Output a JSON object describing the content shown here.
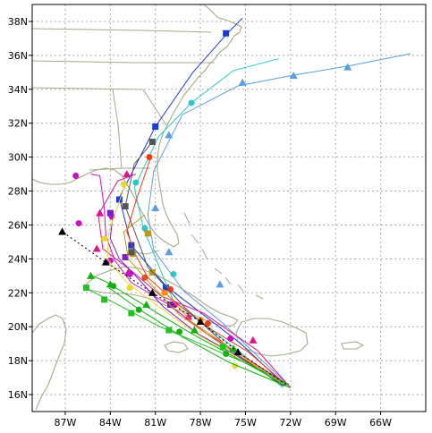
{
  "map": {
    "lat_labels": [
      "16N",
      "18N",
      "20N",
      "22N",
      "24N",
      "26N",
      "28N",
      "30N",
      "32N",
      "34N",
      "36N",
      "38N"
    ],
    "lon_labels": [
      "87W",
      "84W",
      "81W",
      "78W",
      "75W",
      "72W",
      "69W",
      "66W"
    ],
    "lon_range": [
      -89.2,
      -63.0
    ],
    "lat_range": [
      15.0,
      39.0
    ],
    "colors": {
      "coast": "#a8a888",
      "grid": "#a8a8a8",
      "frame": "#000000"
    }
  },
  "tracks": [
    {
      "color": "#1a3bd6",
      "marker": "square",
      "points": [
        [
          -72.3,
          16.5
        ],
        [
          -75.3,
          19.0
        ],
        [
          -80.3,
          22.4
        ],
        [
          -82.6,
          24.8
        ],
        [
          -83.4,
          27.6
        ],
        [
          -81.0,
          31.8
        ],
        [
          -78.5,
          35.0
        ],
        [
          -76.2,
          37.3
        ],
        [
          -75.2,
          38.2
        ]
      ],
      "markers": [
        [
          -82.6,
          24.8
        ],
        [
          -83.4,
          27.5
        ],
        [
          -81.0,
          31.8
        ],
        [
          -76.3,
          37.3
        ],
        [
          -80.3,
          22.3
        ]
      ]
    },
    {
      "color": "#27c9c4",
      "marker": "circle",
      "points": [
        [
          -72.5,
          16.4
        ],
        [
          -75.5,
          18.6
        ],
        [
          -79.8,
          21.5
        ],
        [
          -81.8,
          25.8
        ],
        [
          -82.4,
          28.2
        ],
        [
          -80.8,
          31.2
        ],
        [
          -78.6,
          33.2
        ],
        [
          -75.8,
          35.1
        ],
        [
          -72.8,
          35.8
        ]
      ],
      "markers": [
        [
          -79.8,
          23.1
        ],
        [
          -81.7,
          25.8
        ],
        [
          -82.3,
          28.5
        ],
        [
          -78.6,
          33.2
        ]
      ]
    },
    {
      "color": "#5a9ee0",
      "marker": "triangle",
      "points": [
        [
          -72.2,
          16.6
        ],
        [
          -76.5,
          20.2
        ],
        [
          -79.1,
          22.1
        ],
        [
          -81.1,
          24.5
        ],
        [
          -81.5,
          26.6
        ],
        [
          -81.1,
          29.2
        ],
        [
          -79.2,
          32.5
        ],
        [
          -75.5,
          34.2
        ],
        [
          -72.0,
          34.8
        ],
        [
          -68.0,
          35.4
        ],
        [
          -64.0,
          36.1
        ]
      ],
      "markers": [
        [
          -76.7,
          22.5
        ],
        [
          -80.1,
          24.4
        ],
        [
          -81.0,
          27.0
        ],
        [
          -80.1,
          31.3
        ],
        [
          -75.2,
          34.4
        ],
        [
          -71.8,
          34.8
        ],
        [
          -68.2,
          35.3
        ]
      ]
    },
    {
      "color": "#f33a10",
      "marker": "circle",
      "points": [
        [
          -72.3,
          16.6
        ],
        [
          -74.8,
          18.5
        ],
        [
          -77.2,
          19.8
        ],
        [
          -79.6,
          21.4
        ],
        [
          -81.5,
          22.9
        ],
        [
          -82.3,
          24.2
        ],
        [
          -82.9,
          25.6
        ],
        [
          -82.3,
          27.4
        ],
        [
          -81.3,
          30.0
        ]
      ],
      "markers": [
        [
          -77.5,
          20.2
        ],
        [
          -80.0,
          22.2
        ],
        [
          -81.7,
          22.9
        ],
        [
          -82.5,
          24.3
        ],
        [
          -81.4,
          30.0
        ]
      ]
    },
    {
      "color": "#e0148a",
      "marker": "triangle",
      "points": [
        [
          -72.0,
          16.4
        ],
        [
          -74.2,
          18.6
        ],
        [
          -77.8,
          20.8
        ],
        [
          -80.6,
          21.8
        ],
        [
          -82.6,
          23.3
        ],
        [
          -84.5,
          24.6
        ],
        [
          -84.8,
          26.6
        ],
        [
          -83.5,
          28.6
        ],
        [
          -82.3,
          29.0
        ]
      ],
      "markers": [
        [
          -74.5,
          19.2
        ],
        [
          -78.8,
          20.6
        ],
        [
          -82.8,
          23.2
        ],
        [
          -84.9,
          24.6
        ],
        [
          -84.7,
          26.7
        ],
        [
          -82.9,
          29.0
        ]
      ]
    },
    {
      "color": "#c811c0",
      "marker": "circle",
      "points": [
        [
          -72.2,
          16.6
        ],
        [
          -75.4,
          18.4
        ],
        [
          -77.6,
          19.6
        ],
        [
          -80.1,
          21.3
        ],
        [
          -82.6,
          22.6
        ],
        [
          -83.7,
          23.9
        ],
        [
          -84.3,
          25.4
        ],
        [
          -84.4,
          27.0
        ],
        [
          -84.7,
          28.9
        ],
        [
          -85.3,
          29.0
        ]
      ],
      "markers": [
        [
          -79.7,
          21.3
        ],
        [
          -82.7,
          23.1
        ],
        [
          -84.0,
          23.9
        ],
        [
          -83.9,
          26.5
        ],
        [
          -86.3,
          28.9
        ],
        [
          -86.1,
          26.1
        ],
        [
          -76.0,
          19.3
        ]
      ]
    },
    {
      "color": "#7a1ecc",
      "marker": "square",
      "points": [
        [
          -72.4,
          16.5
        ],
        [
          -75.6,
          18.3
        ],
        [
          -78.2,
          19.6
        ],
        [
          -80.5,
          21.2
        ],
        [
          -82.0,
          22.7
        ],
        [
          -83.4,
          24.0
        ],
        [
          -84.0,
          25.2
        ],
        [
          -83.8,
          26.8
        ]
      ],
      "markers": [
        [
          -80.0,
          21.3
        ],
        [
          -83.0,
          24.1
        ],
        [
          -84.0,
          26.7
        ]
      ]
    },
    {
      "color": "#e8d82c",
      "marker": "circle",
      "points": [
        [
          -72.6,
          16.7
        ],
        [
          -75.2,
          18.0
        ],
        [
          -78.3,
          19.6
        ],
        [
          -80.8,
          21.2
        ],
        [
          -82.9,
          22.6
        ],
        [
          -84.2,
          24.0
        ],
        [
          -84.1,
          25.6
        ],
        [
          -83.0,
          28.4
        ]
      ],
      "markers": [
        [
          -75.7,
          17.7
        ],
        [
          -82.7,
          22.3
        ],
        [
          -84.4,
          25.2
        ],
        [
          -83.1,
          28.4
        ]
      ]
    },
    {
      "color": "#b99a10",
      "marker": "square",
      "points": [
        [
          -72.3,
          16.6
        ],
        [
          -76.0,
          18.6
        ],
        [
          -79.4,
          20.7
        ],
        [
          -81.4,
          22.6
        ],
        [
          -82.8,
          24.0
        ],
        [
          -83.1,
          25.6
        ],
        [
          -81.7,
          26.6
        ]
      ],
      "markers": [
        [
          -81.2,
          23.2
        ],
        [
          -82.5,
          24.3
        ],
        [
          -81.5,
          25.5
        ]
      ]
    },
    {
      "color": "#555555",
      "marker": "square",
      "points": [
        [
          -72.5,
          16.5
        ],
        [
          -75.8,
          18.5
        ],
        [
          -79.0,
          21.1
        ],
        [
          -81.5,
          23.5
        ],
        [
          -83.0,
          27.1
        ],
        [
          -82.4,
          29.6
        ],
        [
          -81.2,
          30.9
        ]
      ],
      "markers": [
        [
          -82.6,
          24.4
        ],
        [
          -83.0,
          27.1
        ],
        [
          -81.2,
          30.9
        ]
      ]
    },
    {
      "color": "#ff8c00",
      "marker": "circle",
      "points": [
        [
          -72.4,
          16.6
        ],
        [
          -75.6,
          18.5
        ],
        [
          -78.6,
          20.3
        ],
        [
          -80.5,
          22.2
        ]
      ],
      "markers": [
        [
          -78.0,
          20.4
        ],
        [
          -80.4,
          22.0
        ]
      ]
    },
    {
      "color": "#10b010",
      "marker": "circle",
      "points": [
        [
          -72.0,
          16.4
        ],
        [
          -76.1,
          17.9
        ],
        [
          -79.2,
          19.4
        ],
        [
          -82.2,
          21.1
        ],
        [
          -84.1,
          22.3
        ]
      ],
      "markers": [
        [
          -76.3,
          18.4
        ],
        [
          -79.4,
          19.7
        ],
        [
          -82.1,
          21.0
        ],
        [
          -83.8,
          22.4
        ]
      ]
    },
    {
      "color": "#10b010",
      "marker": "triangle",
      "points": [
        [
          -72.1,
          16.6
        ],
        [
          -75.3,
          18.0
        ],
        [
          -78.6,
          19.6
        ],
        [
          -81.8,
          21.3
        ],
        [
          -84.4,
          22.7
        ],
        [
          -85.2,
          23.0
        ]
      ],
      "markers": [
        [
          -78.4,
          19.8
        ],
        [
          -81.6,
          21.3
        ],
        [
          -84.0,
          22.5
        ],
        [
          -85.3,
          23.0
        ],
        [
          -75.8,
          18.7
        ]
      ]
    },
    {
      "color": "#22c422",
      "marker": "square",
      "points": [
        [
          -72.2,
          16.5
        ],
        [
          -75.1,
          17.9
        ],
        [
          -78.0,
          19.0
        ],
        [
          -80.7,
          20.0
        ],
        [
          -83.5,
          21.3
        ],
        [
          -85.7,
          22.3
        ]
      ],
      "markers": [
        [
          -76.5,
          18.8
        ],
        [
          -80.1,
          19.8
        ],
        [
          -82.6,
          20.8
        ],
        [
          -84.4,
          21.6
        ],
        [
          -85.6,
          22.3
        ]
      ]
    },
    {
      "color": "#000000",
      "marker": "triangle",
      "dashed": true,
      "points": [
        [
          -72.3,
          16.6
        ],
        [
          -75.5,
          18.5
        ],
        [
          -78.0,
          20.3
        ],
        [
          -81.2,
          22.0
        ],
        [
          -84.3,
          23.8
        ],
        [
          -87.2,
          25.6
        ]
      ],
      "markers": [
        [
          -75.5,
          18.5
        ],
        [
          -78.0,
          20.3
        ],
        [
          -81.2,
          22.0
        ],
        [
          -84.3,
          23.8
        ],
        [
          -87.2,
          25.6
        ]
      ]
    }
  ]
}
